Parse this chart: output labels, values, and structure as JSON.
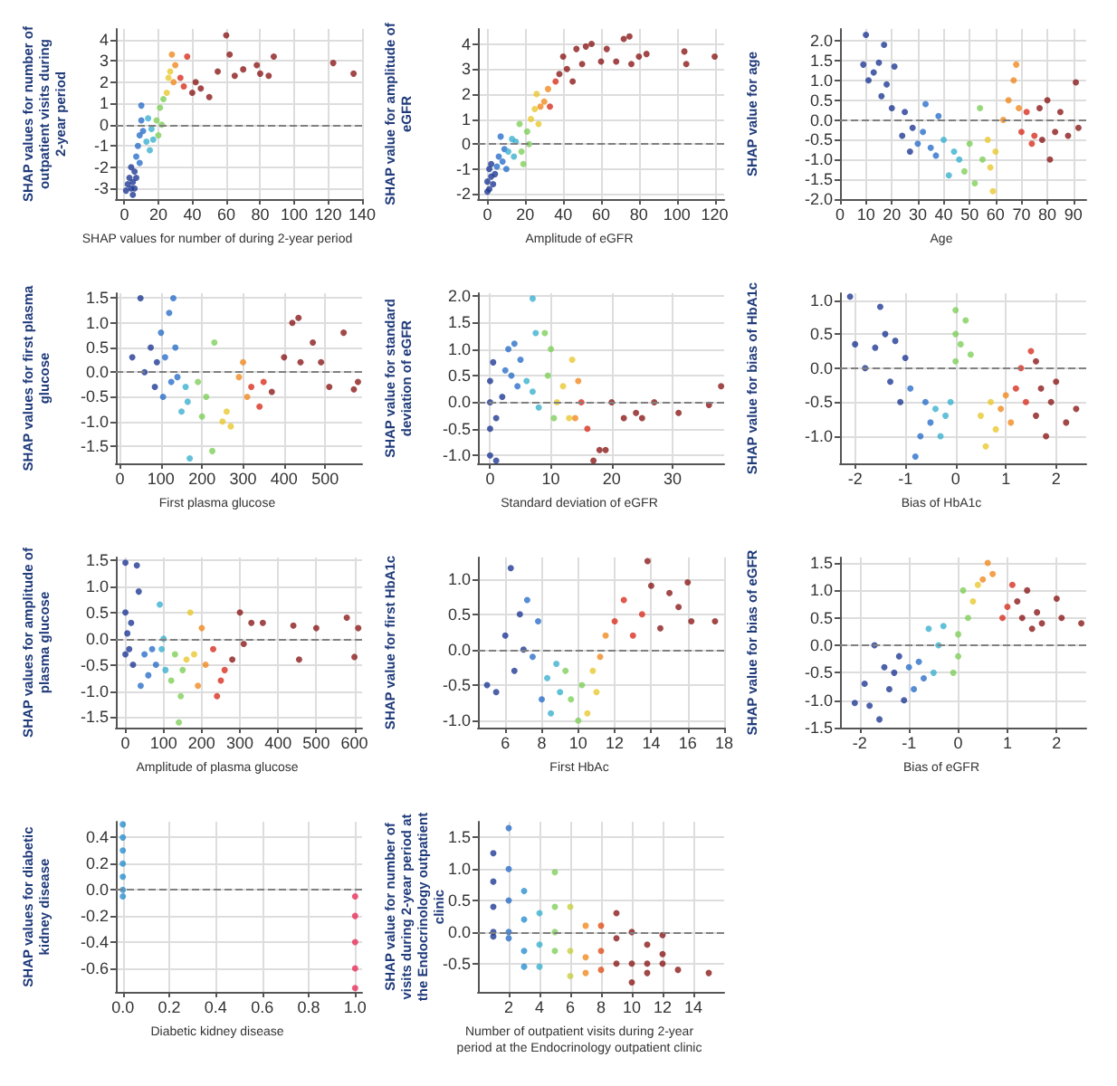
{
  "chart_data": [
    {
      "type": "scatter",
      "ylabel": "SHAP values for number of outpatient visits during 2-year period",
      "xlabel": "SHAP values for number of during 2-year period",
      "xlim": [
        -5,
        140
      ],
      "xticks": [
        0,
        20,
        40,
        60,
        80,
        100,
        120,
        140
      ],
      "ylim": [
        -3.5,
        4.5
      ],
      "yticks": [
        -3,
        -2,
        -1,
        0,
        1,
        2,
        3,
        4
      ],
      "grid": true,
      "marker": "circle",
      "ref_lines": [
        {
          "axis": "y",
          "value": 0,
          "line_style": "dashed",
          "color": "#808080"
        }
      ],
      "series": [
        {
          "color": "#1f3a93",
          "x": [
            2,
            1,
            3,
            4,
            5,
            5,
            6,
            6,
            4,
            7
          ],
          "values": [
            -2.8,
            -3.1,
            -2.5,
            -3.0,
            -3.3,
            -2.7,
            -2.2,
            -3.0,
            -2.0,
            -2.5
          ]
        },
        {
          "color": "#2a6fc9",
          "x": [
            7,
            8,
            9,
            10,
            10,
            9,
            11
          ],
          "values": [
            -1.5,
            -1.0,
            -0.5,
            0.2,
            0.9,
            -1.8,
            -0.3
          ]
        },
        {
          "color": "#3bb0d0",
          "x": [
            13,
            14,
            15,
            16,
            17
          ],
          "values": [
            -0.8,
            0.3,
            -1.2,
            -0.2,
            -0.7
          ]
        },
        {
          "color": "#7fcf5a",
          "x": [
            19,
            20,
            21,
            22,
            23
          ],
          "values": [
            0.2,
            -0.5,
            0.8,
            0.0,
            1.2
          ]
        },
        {
          "color": "#e8c830",
          "x": [
            25,
            26,
            27
          ],
          "values": [
            1.5,
            2.2,
            2.5
          ]
        },
        {
          "color": "#f08a20",
          "x": [
            28,
            29,
            30
          ],
          "values": [
            3.3,
            2.0,
            2.8
          ]
        },
        {
          "color": "#d83020",
          "x": [
            33,
            35,
            37
          ],
          "values": [
            2.2,
            1.8,
            3.2
          ]
        },
        {
          "color": "#8b1a1a",
          "x": [
            40,
            42,
            45,
            50,
            55,
            60,
            62,
            65,
            70,
            78,
            80,
            85,
            88,
            123,
            135
          ],
          "values": [
            1.5,
            2.0,
            1.7,
            1.3,
            2.5,
            4.2,
            3.3,
            2.3,
            2.6,
            2.8,
            2.4,
            2.3,
            3.2,
            2.9,
            2.4
          ]
        }
      ]
    },
    {
      "type": "scatter",
      "ylabel": "SHAP value for amplitude of eGFR",
      "xlabel": "Amplitude of eGFR",
      "xlim": [
        -5,
        125
      ],
      "xticks": [
        0,
        20,
        40,
        60,
        80,
        100,
        120
      ],
      "ylim": [
        -2.2,
        4.6
      ],
      "yticks": [
        -2,
        -1,
        0,
        1,
        2,
        3,
        4
      ],
      "grid": true,
      "marker": "circle",
      "ref_lines": [
        {
          "axis": "y",
          "value": 0,
          "line_style": "dashed",
          "color": "#808080"
        }
      ],
      "series": [
        {
          "color": "#1f3a93",
          "x": [
            0,
            0,
            1,
            1,
            2,
            3,
            2,
            4
          ],
          "values": [
            -1.9,
            -1.5,
            -1.0,
            -1.8,
            -1.3,
            -1.6,
            -0.8,
            -1.2
          ]
        },
        {
          "color": "#2a6fc9",
          "x": [
            5,
            6,
            7,
            8,
            9,
            10
          ],
          "values": [
            -0.9,
            -0.5,
            0.3,
            -0.7,
            -0.2,
            -1.0
          ]
        },
        {
          "color": "#3bb0d0",
          "x": [
            11,
            13,
            14,
            15
          ],
          "values": [
            -0.3,
            0.2,
            -0.5,
            0.1
          ]
        },
        {
          "color": "#7fcf5a",
          "x": [
            17,
            18,
            19,
            21,
            22
          ],
          "values": [
            0.8,
            -0.3,
            -0.8,
            0.5,
            0.0
          ]
        },
        {
          "color": "#e8c830",
          "x": [
            23,
            25,
            27,
            26
          ],
          "values": [
            1.0,
            1.4,
            0.8,
            2.0
          ]
        },
        {
          "color": "#f08a20",
          "x": [
            28,
            30,
            32
          ],
          "values": [
            1.5,
            1.7,
            2.2
          ]
        },
        {
          "color": "#d83020",
          "x": [
            33,
            36
          ],
          "values": [
            1.5,
            2.5
          ]
        },
        {
          "color": "#8b1a1a",
          "x": [
            38,
            40,
            42,
            45,
            47,
            50,
            52,
            55,
            60,
            63,
            68,
            72,
            75,
            76,
            80,
            84,
            104,
            105,
            120
          ],
          "values": [
            2.8,
            3.5,
            3.0,
            2.5,
            3.8,
            3.2,
            3.9,
            4.0,
            3.3,
            3.8,
            3.3,
            4.2,
            4.3,
            3.2,
            3.5,
            3.6,
            3.7,
            3.2,
            3.5
          ]
        }
      ]
    },
    {
      "type": "scatter",
      "ylabel": "SHAP value for age",
      "xlabel": "Age",
      "xlim": [
        0,
        95
      ],
      "xticks": [
        0,
        10,
        20,
        30,
        40,
        50,
        60,
        70,
        80,
        90
      ],
      "ylim": [
        -2.0,
        2.3
      ],
      "yticks": [
        {
          "value": -2,
          "label": "-2.0"
        },
        -1.5,
        {
          "value": -1,
          "label": "-1.0"
        },
        -0.5,
        {
          "value": 0,
          "label": "0.0"
        },
        0.5,
        {
          "value": 1,
          "label": "1.0"
        },
        1.5,
        {
          "value": 2,
          "label": "2.0"
        }
      ],
      "grid": true,
      "marker": "circle",
      "ref_lines": [
        {
          "axis": "y",
          "value": 0,
          "line_style": "dashed",
          "color": "#808080"
        }
      ],
      "series": [
        {
          "color": "#1f3a93",
          "x": [
            9,
            10,
            11,
            13,
            15,
            16,
            17,
            18,
            20,
            21,
            24,
            25,
            27,
            28
          ],
          "values": [
            1.4,
            2.15,
            1.0,
            1.2,
            1.45,
            0.6,
            1.9,
            0.9,
            0.3,
            1.35,
            -0.4,
            0.2,
            -0.8,
            -0.2
          ]
        },
        {
          "color": "#2a6fc9",
          "x": [
            30,
            32,
            33,
            35,
            37,
            38
          ],
          "values": [
            -0.6,
            -0.3,
            0.4,
            -0.7,
            -0.9,
            0.1
          ]
        },
        {
          "color": "#3bb0d0",
          "x": [
            40,
            42,
            44,
            46
          ],
          "values": [
            -0.5,
            -1.4,
            -0.8,
            -1.0
          ]
        },
        {
          "color": "#7fcf5a",
          "x": [
            48,
            50,
            52,
            54,
            55
          ],
          "values": [
            -1.3,
            -0.6,
            -1.6,
            0.3,
            -1.0
          ]
        },
        {
          "color": "#e8c830",
          "x": [
            57,
            58,
            59,
            60
          ],
          "values": [
            -0.5,
            -1.2,
            -1.8,
            -0.8
          ]
        },
        {
          "color": "#f08a20",
          "x": [
            63,
            65,
            67,
            68,
            69
          ],
          "values": [
            0.0,
            0.5,
            1.0,
            1.4,
            0.3
          ]
        },
        {
          "color": "#d83020",
          "x": [
            70,
            72,
            74,
            75
          ],
          "values": [
            -0.3,
            0.2,
            -0.6,
            -0.4
          ]
        },
        {
          "color": "#8b1a1a",
          "x": [
            77,
            78,
            80,
            81,
            83,
            85,
            88,
            91,
            92
          ],
          "values": [
            0.3,
            -0.5,
            0.5,
            -1.0,
            -0.3,
            0.2,
            -0.4,
            0.95,
            -0.2
          ]
        }
      ]
    },
    {
      "type": "scatter",
      "ylabel": "SHAP values for first plasma glucose",
      "xlabel": "First plasma glucose",
      "xlim": [
        -10,
        590
      ],
      "xticks": [
        0,
        100,
        200,
        300,
        400,
        500
      ],
      "ylim": [
        -1.85,
        1.6
      ],
      "yticks": [
        -1.5,
        {
          "value": -1,
          "label": "-1.0"
        },
        -0.5,
        {
          "value": 0,
          "label": "0.0"
        },
        0.5,
        {
          "value": 1,
          "label": "1.0"
        },
        1.5
      ],
      "grid": true,
      "marker": "circle",
      "ref_lines": [
        {
          "axis": "y",
          "value": 0,
          "line_style": "dashed",
          "color": "#808080"
        }
      ],
      "series": [
        {
          "color": "#1f3a93",
          "x": [
            30,
            50,
            60,
            75,
            85,
            90
          ],
          "values": [
            0.3,
            1.5,
            0.0,
            0.5,
            -0.3,
            0.2
          ]
        },
        {
          "color": "#2a6fc9",
          "x": [
            100,
            105,
            110,
            120,
            125,
            130,
            135,
            140
          ],
          "values": [
            0.8,
            -0.5,
            0.3,
            1.2,
            -0.2,
            1.5,
            0.5,
            -0.1
          ]
        },
        {
          "color": "#3bb0d0",
          "x": [
            150,
            160,
            170,
            165
          ],
          "values": [
            -0.8,
            -0.3,
            -1.75,
            -0.6
          ]
        },
        {
          "color": "#7fcf5a",
          "x": [
            190,
            200,
            210,
            230,
            225
          ],
          "values": [
            -0.2,
            -0.9,
            -0.5,
            0.6,
            -1.6
          ]
        },
        {
          "color": "#e8c830",
          "x": [
            250,
            260,
            270
          ],
          "values": [
            -1.0,
            -0.8,
            -1.1
          ]
        },
        {
          "color": "#f08a20",
          "x": [
            290,
            300,
            310
          ],
          "values": [
            -0.1,
            0.2,
            -0.5
          ]
        },
        {
          "color": "#d83020",
          "x": [
            320,
            340,
            350
          ],
          "values": [
            -0.3,
            -0.7,
            -0.2
          ]
        },
        {
          "color": "#8b1a1a",
          "x": [
            370,
            400,
            420,
            435,
            440,
            470,
            490,
            510,
            545,
            570,
            580
          ],
          "values": [
            -0.4,
            0.3,
            1.0,
            1.1,
            0.2,
            0.6,
            0.2,
            -0.3,
            0.8,
            -0.35,
            -0.2
          ]
        }
      ]
    },
    {
      "type": "scatter",
      "ylabel": "SHAP value for standard deviation of eGFR",
      "xlabel": "Standard deviation of eGFR",
      "xlim": [
        -2,
        38.5
      ],
      "xticks": [
        0,
        10,
        20,
        30
      ],
      "ylim": [
        -1.15,
        2.05
      ],
      "yticks": [
        {
          "value": -1,
          "label": "-1.0"
        },
        -0.5,
        {
          "value": 0,
          "label": "0.0"
        },
        0.5,
        {
          "value": 1,
          "label": "1.0"
        },
        1.5,
        {
          "value": 2,
          "label": "2.0"
        }
      ],
      "grid": true,
      "marker": "circle",
      "ref_lines": [
        {
          "axis": "y",
          "value": 0,
          "line_style": "dashed",
          "color": "#808080"
        }
      ],
      "series": [
        {
          "color": "#1f3a93",
          "x": [
            0,
            0,
            0,
            0,
            0.5,
            1,
            1,
            2
          ],
          "values": [
            0.4,
            -1.0,
            -0.5,
            0.0,
            0.75,
            -1.1,
            -0.3,
            0.1
          ]
        },
        {
          "color": "#2a6fc9",
          "x": [
            2.5,
            3,
            3.5,
            4,
            4.5,
            5
          ],
          "values": [
            0.6,
            1.0,
            0.5,
            1.1,
            0.3,
            0.8
          ]
        },
        {
          "color": "#3bb0d0",
          "x": [
            6,
            7,
            7,
            7.5,
            8
          ],
          "values": [
            0.4,
            1.95,
            0.2,
            1.3,
            -0.1
          ]
        },
        {
          "color": "#7fcf5a",
          "x": [
            9,
            9.5,
            10,
            10.5
          ],
          "values": [
            1.3,
            0.5,
            1.0,
            -0.3
          ]
        },
        {
          "color": "#e8c830",
          "x": [
            11,
            12,
            13,
            13.5
          ],
          "values": [
            0.0,
            0.3,
            -0.3,
            0.8
          ]
        },
        {
          "color": "#f08a20",
          "x": [
            14,
            14.5
          ],
          "values": [
            -0.3,
            0.4
          ]
        },
        {
          "color": "#d83020",
          "x": [
            15,
            16
          ],
          "values": [
            0.0,
            -0.5
          ]
        },
        {
          "color": "#8b1a1a",
          "x": [
            17,
            18,
            19,
            20,
            22,
            24,
            25,
            27,
            31,
            36,
            38
          ],
          "values": [
            -1.1,
            -0.9,
            -0.9,
            0.0,
            -0.3,
            -0.2,
            -0.3,
            0.0,
            -0.2,
            -0.05,
            0.3
          ]
        }
      ]
    },
    {
      "type": "scatter",
      "ylabel": "SHAP value for bias of HbA1c",
      "xlabel": "Bias of HbA1c",
      "xlim": [
        -2.3,
        2.6
      ],
      "xticks": [
        -2,
        -1,
        0,
        1,
        2
      ],
      "ylim": [
        -1.4,
        1.1
      ],
      "yticks": [
        {
          "value": -1,
          "label": "-1.0"
        },
        -0.5,
        {
          "value": 0,
          "label": "0.0"
        },
        0.5,
        {
          "value": 1,
          "label": "1.0"
        }
      ],
      "grid": true,
      "marker": "circle",
      "ref_lines": [
        {
          "axis": "y",
          "value": 0,
          "line_style": "dashed",
          "color": "#808080"
        }
      ],
      "series": [
        {
          "color": "#1f3a93",
          "x": [
            -2.1,
            -2.0,
            -1.8,
            -1.6,
            -1.5,
            -1.4,
            -1.3,
            -1.2,
            -1.1,
            -1.0
          ],
          "values": [
            1.05,
            0.35,
            0.0,
            0.3,
            0.9,
            0.5,
            -0.2,
            0.4,
            -0.5,
            0.15
          ]
        },
        {
          "color": "#2a6fc9",
          "x": [
            -0.9,
            -0.8,
            -0.7,
            -0.6,
            -0.5
          ],
          "values": [
            -0.3,
            -1.3,
            -1.0,
            -0.5,
            -0.8
          ]
        },
        {
          "color": "#3bb0d0",
          "x": [
            -0.4,
            -0.3,
            -0.2,
            -0.1
          ],
          "values": [
            -0.6,
            -1.0,
            -0.7,
            -0.5
          ]
        },
        {
          "color": "#7fcf5a",
          "x": [
            0,
            0,
            0,
            0.1,
            0.2,
            0.3
          ],
          "values": [
            0.85,
            0.5,
            0.1,
            0.35,
            0.7,
            0.2
          ]
        },
        {
          "color": "#e8c830",
          "x": [
            0.5,
            0.6,
            0.7,
            0.8
          ],
          "values": [
            -0.7,
            -1.15,
            -0.5,
            -0.9
          ]
        },
        {
          "color": "#f08a20",
          "x": [
            0.9,
            1.0,
            1.1
          ],
          "values": [
            -0.6,
            -0.4,
            -0.8
          ]
        },
        {
          "color": "#d83020",
          "x": [
            1.2,
            1.3,
            1.4,
            1.5
          ],
          "values": [
            -0.3,
            0.0,
            -0.5,
            0.25
          ]
        },
        {
          "color": "#8b1a1a",
          "x": [
            1.6,
            1.7,
            1.8,
            1.9,
            2.0,
            2.2,
            2.4,
            1.6
          ],
          "values": [
            -0.7,
            -0.3,
            -1.0,
            -0.5,
            -0.2,
            -0.8,
            -0.6,
            0.1
          ]
        }
      ]
    },
    {
      "type": "scatter",
      "ylabel": "SHAP values for amplitude of plasma glucose",
      "xlabel": "Amplitude of plasma glucose",
      "xlim": [
        -25,
        620
      ],
      "xticks": [
        0,
        100,
        200,
        300,
        400,
        500,
        600
      ],
      "ylim": [
        -1.7,
        1.55
      ],
      "yticks": [
        -1.5,
        {
          "value": -1,
          "label": "-1.0"
        },
        -0.5,
        {
          "value": 0,
          "label": "0.0"
        },
        0.5,
        {
          "value": 1,
          "label": "1.0"
        },
        1.5
      ],
      "grid": true,
      "marker": "circle",
      "ref_lines": [
        {
          "axis": "y",
          "value": 0,
          "line_style": "dashed",
          "color": "#808080"
        }
      ],
      "series": [
        {
          "color": "#1f3a93",
          "x": [
            0,
            0,
            0,
            5,
            10,
            15,
            20,
            30,
            35
          ],
          "values": [
            1.45,
            -0.3,
            0.5,
            0.1,
            -0.2,
            0.3,
            -0.5,
            1.4,
            0.9
          ]
        },
        {
          "color": "#2a6fc9",
          "x": [
            40,
            50,
            60,
            70,
            80
          ],
          "values": [
            -0.9,
            -0.3,
            -0.7,
            -0.2,
            -0.5
          ]
        },
        {
          "color": "#3bb0d0",
          "x": [
            90,
            95,
            100,
            105
          ],
          "values": [
            0.65,
            -0.2,
            0.0,
            -0.6
          ]
        },
        {
          "color": "#7fcf5a",
          "x": [
            120,
            130,
            140,
            145,
            150
          ],
          "values": [
            -0.8,
            -0.3,
            -1.6,
            -1.1,
            -0.6
          ]
        },
        {
          "color": "#e8c830",
          "x": [
            160,
            170,
            180
          ],
          "values": [
            -0.4,
            0.5,
            -0.3
          ]
        },
        {
          "color": "#f08a20",
          "x": [
            190,
            200,
            210
          ],
          "values": [
            -0.9,
            0.2,
            -0.5
          ]
        },
        {
          "color": "#d83020",
          "x": [
            230,
            240,
            250,
            260
          ],
          "values": [
            -0.2,
            -1.1,
            -0.8,
            -0.6
          ]
        },
        {
          "color": "#8b1a1a",
          "x": [
            280,
            300,
            310,
            330,
            360,
            440,
            455,
            500,
            580,
            600,
            610
          ],
          "values": [
            -0.4,
            0.5,
            -0.1,
            0.3,
            0.3,
            0.25,
            -0.4,
            0.2,
            0.4,
            -0.35,
            0.2
          ]
        }
      ]
    },
    {
      "type": "scatter",
      "ylabel": "SHAP value for first HbA1c",
      "xlabel": "First HbAc",
      "xlim": [
        4.5,
        18
      ],
      "xticks": [
        6,
        8,
        10,
        12,
        14,
        16,
        18
      ],
      "ylim": [
        -1.1,
        1.3
      ],
      "yticks": [
        {
          "value": -1,
          "label": "-1.0"
        },
        -0.5,
        {
          "value": 0,
          "label": "0.0"
        },
        0.5,
        {
          "value": 1,
          "label": "1.0"
        }
      ],
      "grid": true,
      "marker": "circle",
      "ref_lines": [
        {
          "axis": "y",
          "value": 0,
          "line_style": "dashed",
          "color": "#808080"
        }
      ],
      "series": [
        {
          "color": "#1f3a93",
          "x": [
            5,
            5.5,
            6,
            6.3,
            6.5,
            6.8,
            7
          ],
          "values": [
            -0.5,
            -0.6,
            0.2,
            1.15,
            -0.3,
            0.5,
            0.0
          ]
        },
        {
          "color": "#2a6fc9",
          "x": [
            7.2,
            7.5,
            7.8,
            8
          ],
          "values": [
            0.7,
            -0.1,
            0.4,
            -0.7
          ]
        },
        {
          "color": "#3bb0d0",
          "x": [
            8.3,
            8.5,
            8.8,
            9
          ],
          "values": [
            -0.4,
            -0.9,
            -0.2,
            -0.6
          ]
        },
        {
          "color": "#7fcf5a",
          "x": [
            9.3,
            9.6,
            10,
            10.2
          ],
          "values": [
            -0.3,
            -0.7,
            -1.0,
            -0.5
          ]
        },
        {
          "color": "#e8c830",
          "x": [
            10.5,
            10.8,
            11
          ],
          "values": [
            -0.9,
            -0.3,
            -0.6
          ]
        },
        {
          "color": "#f08a20",
          "x": [
            11.2,
            11.5
          ],
          "values": [
            -0.1,
            0.2
          ]
        },
        {
          "color": "#d83020",
          "x": [
            12,
            12.5,
            13,
            13.5
          ],
          "values": [
            0.4,
            0.7,
            0.2,
            0.5
          ]
        },
        {
          "color": "#8b1a1a",
          "x": [
            13.8,
            14,
            14.5,
            15,
            15.5,
            16,
            16.2,
            17.5
          ],
          "values": [
            1.25,
            0.9,
            0.3,
            0.8,
            0.6,
            0.95,
            0.4,
            0.4
          ]
        }
      ]
    },
    {
      "type": "scatter",
      "ylabel": "SHAP value for bias of eGFR",
      "xlabel": "Bias of eGFR",
      "xlim": [
        -2.4,
        2.6
      ],
      "xticks": [
        -2,
        -1,
        0,
        1,
        2
      ],
      "ylim": [
        -1.5,
        1.6
      ],
      "yticks": [
        -1.5,
        {
          "value": -1,
          "label": "-1.0"
        },
        -0.5,
        {
          "value": 0,
          "label": "0.0"
        },
        0.5,
        {
          "value": 1,
          "label": "1.0"
        },
        1.5
      ],
      "grid": true,
      "marker": "circle",
      "ref_lines": [
        {
          "axis": "y",
          "value": 0,
          "line_style": "dashed",
          "color": "#808080"
        }
      ],
      "series": [
        {
          "color": "#1f3a93",
          "x": [
            -2.1,
            -1.9,
            -1.8,
            -1.7,
            -1.6,
            -1.5,
            -1.4,
            -1.3,
            -1.2,
            -1.1
          ],
          "values": [
            -1.05,
            -0.7,
            -1.1,
            0.0,
            -1.35,
            -0.4,
            -0.8,
            -0.5,
            -0.2,
            -1.0
          ]
        },
        {
          "color": "#2a6fc9",
          "x": [
            -1.0,
            -0.9,
            -0.8,
            -0.7
          ],
          "values": [
            -0.4,
            -0.8,
            -0.3,
            -0.6
          ]
        },
        {
          "color": "#3bb0d0",
          "x": [
            -0.6,
            -0.5,
            -0.4,
            -0.3
          ],
          "values": [
            0.3,
            -0.5,
            0.0,
            0.35
          ]
        },
        {
          "color": "#7fcf5a",
          "x": [
            -0.1,
            0,
            0,
            0.1,
            0.2
          ],
          "values": [
            -0.5,
            -0.2,
            0.2,
            1.0,
            0.5
          ]
        },
        {
          "color": "#e8c830",
          "x": [
            0.3,
            0.4
          ],
          "values": [
            0.8,
            1.1
          ]
        },
        {
          "color": "#f08a20",
          "x": [
            0.6,
            0.7,
            0.5
          ],
          "values": [
            1.5,
            1.3,
            1.2
          ]
        },
        {
          "color": "#d83020",
          "x": [
            0.9,
            1.0,
            1.1
          ],
          "values": [
            0.5,
            0.7,
            1.1
          ]
        },
        {
          "color": "#8b1a1a",
          "x": [
            1.2,
            1.3,
            1.4,
            1.5,
            1.6,
            1.7,
            2.0,
            2.1,
            2.5
          ],
          "values": [
            0.8,
            0.5,
            1.0,
            0.3,
            0.6,
            0.4,
            0.85,
            0.5,
            0.4
          ]
        }
      ]
    },
    {
      "type": "scatter",
      "ylabel": "SHAP values for diabetic kidney disease",
      "xlabel": "Diabetic kidney disease",
      "xlim": [
        -0.03,
        1.03
      ],
      "xticks": [
        {
          "value": 0,
          "label": "0.0"
        },
        0.2,
        0.4,
        0.6,
        0.8,
        {
          "value": 1,
          "label": "1.0"
        }
      ],
      "ylim": [
        -0.78,
        0.52
      ],
      "yticks": [
        -0.6,
        -0.4,
        -0.2,
        {
          "value": 0,
          "label": "0.0"
        },
        0.2,
        0.4
      ],
      "grid": true,
      "marker": "circle",
      "ref_lines": [
        {
          "axis": "y",
          "value": 0,
          "line_style": "dashed",
          "color": "#808080"
        }
      ],
      "series": [
        {
          "color": "#2a8fd0",
          "x": [
            0,
            0,
            0,
            0,
            0,
            0,
            0
          ],
          "values": [
            0.5,
            0.4,
            0.3,
            0.2,
            0.1,
            0.0,
            -0.05
          ]
        },
        {
          "color": "#e8305a",
          "x": [
            1,
            1,
            1,
            1,
            1
          ],
          "values": [
            -0.05,
            -0.2,
            -0.4,
            -0.6,
            -0.75
          ]
        }
      ]
    },
    {
      "type": "scatter",
      "ylabel": "SHAP value for number of visits during 2-year period at the Endocrinology outpatient clinic",
      "xlabel": "Number of outpatient visits during 2-year period at the Endocrinology outpatient clinic",
      "xlim": [
        0,
        16
      ],
      "xticks": [
        2,
        4,
        6,
        8,
        10,
        12,
        14
      ],
      "ylim": [
        -0.95,
        1.75
      ],
      "yticks": [
        -0.5,
        {
          "value": 0,
          "label": "0.0"
        },
        0.5,
        {
          "value": 1,
          "label": "1.0"
        },
        1.5
      ],
      "grid": true,
      "marker": "circle",
      "ref_lines": [
        {
          "axis": "y",
          "value": 0,
          "line_style": "dashed",
          "color": "#808080"
        }
      ],
      "series": [
        {
          "color": "#1f3a93",
          "x": [
            1,
            1,
            1,
            1,
            1
          ],
          "values": [
            1.25,
            0.8,
            0.4,
            0.0,
            -0.07
          ]
        },
        {
          "color": "#2a6fc9",
          "x": [
            2,
            2,
            2,
            2,
            2
          ],
          "values": [
            1.65,
            1.0,
            0.5,
            0.0,
            -0.1
          ]
        },
        {
          "color": "#2a8fd0",
          "x": [
            3,
            3,
            3,
            3
          ],
          "values": [
            0.65,
            0.2,
            -0.3,
            -0.55
          ]
        },
        {
          "color": "#3bb0d0",
          "x": [
            4,
            4,
            4
          ],
          "values": [
            0.3,
            -0.2,
            -0.55
          ]
        },
        {
          "color": "#7fcf5a",
          "x": [
            5,
            5,
            5,
            5
          ],
          "values": [
            0.95,
            0.4,
            0.0,
            -0.3
          ]
        },
        {
          "color": "#c8d040",
          "x": [
            6,
            6,
            6
          ],
          "values": [
            0.4,
            -0.3,
            -0.7
          ]
        },
        {
          "color": "#f08a20",
          "x": [
            7,
            7,
            7
          ],
          "values": [
            0.1,
            -0.4,
            -0.65
          ]
        },
        {
          "color": "#e0501a",
          "x": [
            8,
            8,
            8
          ],
          "values": [
            0.1,
            -0.3,
            -0.6
          ]
        },
        {
          "color": "#8b1a1a",
          "x": [
            9,
            9,
            9,
            10,
            10,
            10,
            11,
            11,
            11,
            12,
            12,
            12,
            13,
            15
          ],
          "values": [
            0.3,
            -0.1,
            -0.5,
            0.0,
            -0.5,
            -0.8,
            -0.2,
            -0.5,
            -0.65,
            -0.05,
            -0.35,
            -0.5,
            -0.6,
            -0.65
          ]
        }
      ]
    }
  ]
}
